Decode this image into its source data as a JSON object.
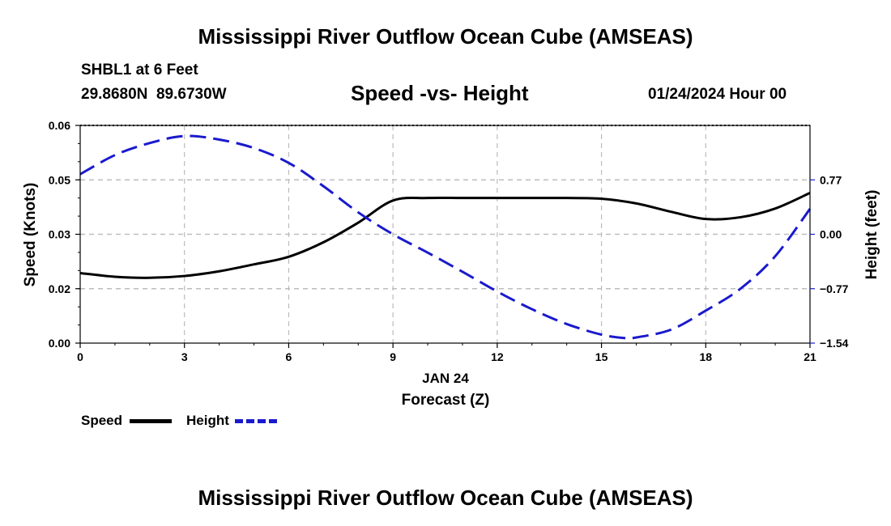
{
  "header": {
    "title": "Mississippi River Outflow Ocean Cube (AMSEAS)",
    "station": "SHBL1 at 6 Feet",
    "coords": "29.8680N  89.6730W",
    "subtitle": "Speed -vs- Height",
    "datetime": "01/24/2024 Hour 00"
  },
  "footer": {
    "title": "Mississippi River Outflow Ocean Cube (AMSEAS)"
  },
  "legend": {
    "speed_label": "Speed",
    "height_label": "Height"
  },
  "colors": {
    "speed": "#000000",
    "height": "#1a1acd",
    "grid": "#bbbbbb"
  },
  "chart_data": {
    "type": "line",
    "title": "Speed -vs- Height",
    "xlabel": "Forecast (Z)",
    "xlabel_date": "JAN 24",
    "ylabel_left": "Speed (Knots)",
    "ylabel_right": "Height (feet)",
    "xlim": [
      0,
      21
    ],
    "xticks": [
      0,
      3,
      6,
      9,
      12,
      15,
      18,
      21
    ],
    "ylim_left": [
      0,
      0.06
    ],
    "yticks_left": [
      0,
      0.015,
      0.03,
      0.045,
      0.06
    ],
    "yticks_left_labels": [
      "0.00",
      "0.02",
      "0.03",
      "0.05",
      "0.06"
    ],
    "ylim_right": [
      -1.54,
      1.54
    ],
    "yticks_right": [
      -1.54,
      -0.77,
      0.0,
      0.77
    ],
    "yticks_right_labels": [
      "−1.54",
      "−0.77",
      "0.00",
      "0.77"
    ],
    "grid": true,
    "series": [
      {
        "name": "Speed",
        "axis": "left",
        "style": "solid",
        "x": [
          0,
          1,
          2,
          3,
          4,
          5,
          6,
          7,
          8,
          9,
          10,
          11,
          12,
          13,
          14,
          15,
          16,
          17,
          18,
          19,
          20,
          21
        ],
        "values": [
          0.0193,
          0.0183,
          0.018,
          0.0185,
          0.0198,
          0.0217,
          0.0238,
          0.0278,
          0.0332,
          0.0393,
          0.04,
          0.04,
          0.04,
          0.04,
          0.04,
          0.0398,
          0.0385,
          0.0362,
          0.0342,
          0.0347,
          0.0371,
          0.0414
        ]
      },
      {
        "name": "Height",
        "axis": "right",
        "style": "dashed",
        "x": [
          0,
          1,
          2,
          3,
          4,
          5,
          6,
          7,
          8,
          9,
          10,
          11,
          12,
          13,
          14,
          15,
          15.7,
          16,
          17,
          18,
          19,
          20,
          21
        ],
        "values": [
          0.85,
          1.12,
          1.29,
          1.39,
          1.34,
          1.22,
          1.01,
          0.68,
          0.31,
          0.0,
          -0.26,
          -0.53,
          -0.81,
          -1.06,
          -1.27,
          -1.42,
          -1.47,
          -1.46,
          -1.35,
          -1.08,
          -0.77,
          -0.31,
          0.36
        ]
      }
    ]
  }
}
